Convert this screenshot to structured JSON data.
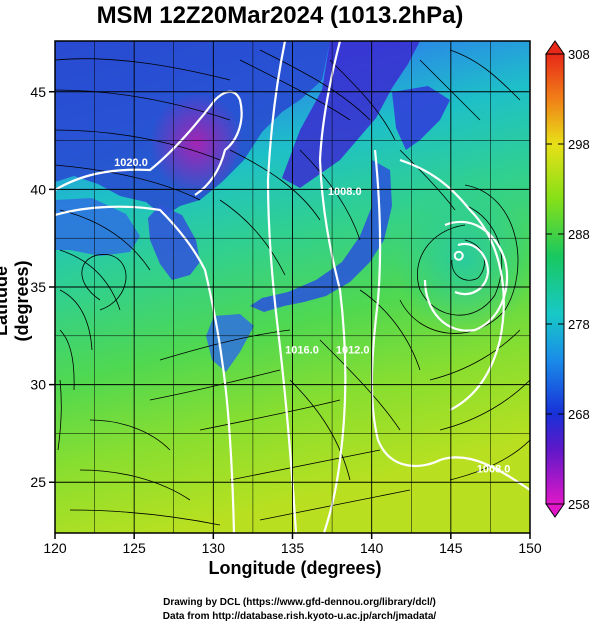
{
  "title": "MSM 12Z20Mar2024 (1013.2hPa)",
  "chart_data": {
    "type": "heatmap",
    "x_label": "Longitude (degrees)",
    "y_label": "Latitude  (degrees)",
    "xlim": [
      120,
      150
    ],
    "ylim": [
      22.4,
      47.6
    ],
    "x_ticks": [
      120,
      125,
      130,
      135,
      140,
      145,
      150
    ],
    "y_ticks": [
      25,
      30,
      35,
      40,
      45
    ],
    "colorbar": {
      "min": 258,
      "max": 308,
      "ticks": [
        258,
        268,
        278,
        288,
        298,
        308
      ]
    },
    "contour_labels": [
      {
        "text": "1020.0",
        "lon": 124.8,
        "lat": 41.2
      },
      {
        "text": "1008.0",
        "lon": 138.3,
        "lat": 39.7
      },
      {
        "text": "1016.0",
        "lon": 135.6,
        "lat": 31.6
      },
      {
        "text": "1012.0",
        "lon": 138.8,
        "lat": 31.6
      },
      {
        "text": "1008.0",
        "lon": 147.7,
        "lat": 25.5
      }
    ],
    "low_center": {
      "lon": 145.5,
      "lat": 36.6
    }
  },
  "credits": {
    "line1": "Drawing by DCL (https://www.gfd‐dennou.org/library/dcl/)",
    "line2": "Data from http://database.rish.kyoto‐u.ac.jp/arch/jmadata/"
  }
}
